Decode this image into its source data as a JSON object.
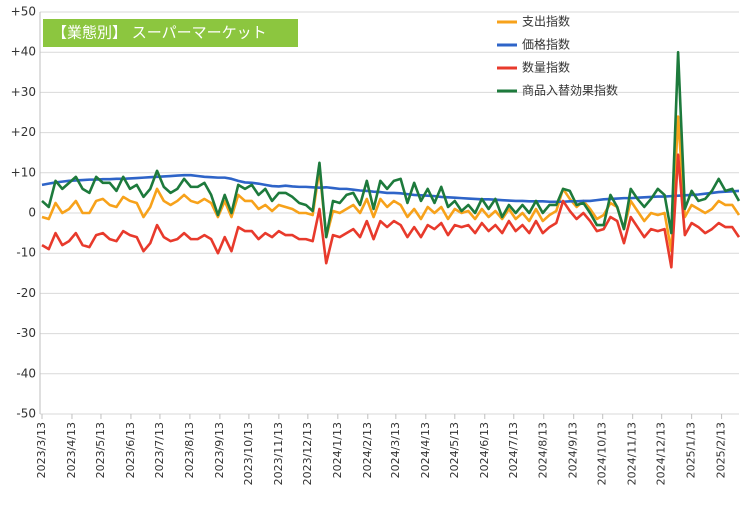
{
  "chart_data": {
    "type": "line",
    "title": "【業態別】 スーパーマーケット",
    "x": [
      "2023/3/13",
      "2023/3/20",
      "2023/3/27",
      "2023/4/3",
      "2023/4/10",
      "2023/4/17",
      "2023/4/24",
      "2023/5/1",
      "2023/5/8",
      "2023/5/15",
      "2023/5/22",
      "2023/5/29",
      "2023/6/5",
      "2023/6/12",
      "2023/6/19",
      "2023/6/26",
      "2023/7/3",
      "2023/7/10",
      "2023/7/17",
      "2023/7/24",
      "2023/7/31",
      "2023/8/7",
      "2023/8/14",
      "2023/8/21",
      "2023/8/28",
      "2023/9/4",
      "2023/9/11",
      "2023/9/18",
      "2023/9/25",
      "2023/10/2",
      "2023/10/9",
      "2023/10/16",
      "2023/10/23",
      "2023/10/30",
      "2023/11/6",
      "2023/11/13",
      "2023/11/20",
      "2023/11/27",
      "2023/12/4",
      "2023/12/11",
      "2023/12/18",
      "2023/12/25",
      "2024/1/1",
      "2024/1/8",
      "2024/1/15",
      "2024/1/22",
      "2024/1/29",
      "2024/2/5",
      "2024/2/12",
      "2024/2/19",
      "2024/2/26",
      "2024/3/4",
      "2024/3/11",
      "2024/3/18",
      "2024/3/25",
      "2024/4/1",
      "2024/4/8",
      "2024/4/15",
      "2024/4/22",
      "2024/4/29",
      "2024/5/6",
      "2024/5/13",
      "2024/5/20",
      "2024/5/27",
      "2024/6/3",
      "2024/6/10",
      "2024/6/17",
      "2024/6/24",
      "2024/7/1",
      "2024/7/8",
      "2024/7/15",
      "2024/7/22",
      "2024/7/29",
      "2024/8/5",
      "2024/8/12",
      "2024/8/19",
      "2024/8/26",
      "2024/9/2",
      "2024/9/9",
      "2024/9/16",
      "2024/9/23",
      "2024/9/30",
      "2024/10/7",
      "2024/10/14",
      "2024/10/21",
      "2024/10/28",
      "2024/11/4",
      "2024/11/11",
      "2024/11/18",
      "2024/11/25",
      "2024/12/2",
      "2024/12/9",
      "2024/12/16",
      "2024/12/23",
      "2024/12/30",
      "2025/1/6",
      "2025/1/13",
      "2025/1/20",
      "2025/1/27",
      "2025/2/3",
      "2025/2/10",
      "2025/2/17",
      "2025/2/24",
      "2025/3/3"
    ],
    "series": [
      {
        "name": "支出指数",
        "color": "#f7a21b",
        "values": [
          -1,
          -1.5,
          2.5,
          0,
          1,
          3,
          0,
          0,
          3,
          3.5,
          2,
          1.5,
          4,
          3,
          2.5,
          -1,
          1.5,
          6,
          3,
          2,
          3,
          4.5,
          3,
          2.5,
          3.5,
          2.5,
          -1,
          3,
          -1,
          4.5,
          3,
          3,
          1,
          2,
          0.5,
          2,
          1.5,
          1,
          0,
          0,
          -0.5,
          11,
          -6,
          0.5,
          0,
          1,
          2,
          0,
          3.5,
          -1,
          3.5,
          1.5,
          3,
          2,
          -1,
          1,
          -1.5,
          1.5,
          0,
          1.5,
          -1.5,
          1,
          0,
          0.5,
          -1.5,
          1,
          -1,
          0.5,
          -1.5,
          1,
          -1.5,
          0,
          -2,
          1,
          -2,
          -0.5,
          0.5,
          6,
          3.5,
          1.5,
          3,
          1,
          -1.5,
          -0.5,
          2.5,
          1.5,
          -4,
          3,
          0.5,
          -2,
          0,
          -0.5,
          0,
          -9.5,
          24,
          -1,
          2,
          1,
          0,
          1,
          3,
          2,
          2,
          -0.5
        ]
      },
      {
        "name": "価格指数",
        "color": "#2e64c8",
        "values": [
          7,
          7.3,
          7.6,
          7.8,
          8,
          8.1,
          8.2,
          8.3,
          8.3,
          8.4,
          8.4,
          8.5,
          8.5,
          8.6,
          8.7,
          8.8,
          8.9,
          9,
          9.1,
          9.2,
          9.3,
          9.4,
          9.4,
          9.2,
          9,
          8.9,
          8.8,
          8.8,
          8.5,
          8,
          7.6,
          7.5,
          7.3,
          7,
          6.7,
          6.6,
          6.8,
          6.6,
          6.5,
          6.5,
          6.4,
          6.3,
          6.4,
          6.2,
          6,
          6,
          5.8,
          5.6,
          5.5,
          5.3,
          5.2,
          5,
          5,
          4.9,
          4.7,
          4.5,
          4.4,
          4.3,
          4.2,
          4,
          3.9,
          3.8,
          3.7,
          3.6,
          3.5,
          3.4,
          3.4,
          3.3,
          3.2,
          3.1,
          3,
          3,
          2.9,
          2.9,
          2.9,
          2.8,
          2.8,
          2.8,
          2.9,
          2.9,
          3,
          3,
          3.2,
          3.4,
          3.5,
          3.6,
          3.7,
          3.7,
          3.8,
          3.9,
          4,
          4.1,
          4.1,
          4.2,
          4.3,
          4.4,
          4.5,
          4.6,
          4.8,
          5,
          5.2,
          5.3,
          5.4,
          5.5
        ]
      },
      {
        "name": "数量指数",
        "color": "#e83a2c",
        "values": [
          -8,
          -9,
          -5,
          -8,
          -7,
          -5,
          -8,
          -8.5,
          -5.5,
          -5,
          -6.5,
          -7,
          -4.5,
          -5.5,
          -6,
          -9.5,
          -7.5,
          -3,
          -6,
          -7,
          -6.5,
          -5,
          -6.5,
          -6.5,
          -5.5,
          -6.5,
          -10,
          -6,
          -9.5,
          -3.5,
          -4.5,
          -4.5,
          -6.5,
          -5,
          -6,
          -4.5,
          -5.5,
          -5.5,
          -6.5,
          -6.5,
          -7,
          1,
          -12.5,
          -5.5,
          -6,
          -5,
          -4,
          -6,
          -2,
          -6.5,
          -2,
          -3.5,
          -2,
          -3,
          -6,
          -3.5,
          -6,
          -3,
          -4,
          -2.5,
          -5.5,
          -3,
          -3.5,
          -3,
          -5,
          -2.5,
          -4.5,
          -3,
          -5,
          -2,
          -4.5,
          -3,
          -5,
          -2,
          -5,
          -3.5,
          -2.5,
          3,
          0.5,
          -1.5,
          0,
          -2,
          -4.5,
          -4,
          -1,
          -2,
          -7.5,
          -1,
          -3.5,
          -6,
          -4,
          -4.5,
          -4,
          -13.5,
          14.5,
          -5.5,
          -2.5,
          -3.5,
          -5,
          -4,
          -2.5,
          -3.5,
          -3.5,
          -6
        ]
      },
      {
        "name": "商品入替効果指数",
        "color": "#1d7a3c",
        "values": [
          3,
          1.5,
          8,
          6,
          7.5,
          9,
          6,
          5,
          9,
          7.5,
          7.5,
          5.5,
          9,
          6,
          7,
          4,
          6,
          10.5,
          6.5,
          5,
          6,
          8.5,
          6.5,
          6.5,
          7.5,
          4.5,
          -0.5,
          4.5,
          0,
          7,
          6,
          7,
          4.5,
          6,
          3,
          5,
          5,
          4,
          2.5,
          2,
          0.5,
          12.5,
          -6,
          3,
          2.5,
          4.5,
          5,
          2,
          8,
          1,
          8,
          6,
          8,
          8.5,
          2.5,
          7.5,
          3,
          6,
          2.5,
          6.5,
          1.5,
          3,
          0.5,
          2,
          0,
          3.5,
          1,
          3.5,
          -1,
          2,
          0,
          2,
          0,
          3,
          0,
          2,
          2,
          6,
          5.5,
          2,
          2.5,
          0,
          -3,
          -3,
          4.5,
          1.5,
          -4,
          6,
          3.5,
          1.5,
          3.5,
          6,
          4.5,
          -5,
          40,
          1,
          5.5,
          3,
          3.5,
          5.5,
          8.5,
          5.5,
          6,
          3
        ]
      }
    ],
    "xlim": [
      "2023/3/13",
      "2025/3/3"
    ],
    "xticks": [
      "2023/3/13",
      "2023/4/13",
      "2023/5/13",
      "2023/6/13",
      "2023/7/13",
      "2023/8/13",
      "2023/9/13",
      "2023/10/13",
      "2023/11/13",
      "2023/12/13",
      "2024/1/13",
      "2024/2/13",
      "2024/3/13",
      "2024/4/13",
      "2024/5/13",
      "2024/6/13",
      "2024/7/13",
      "2024/8/13",
      "2024/9/13",
      "2024/10/13",
      "2024/11/13",
      "2024/12/13",
      "2025/1/13",
      "2025/2/13"
    ],
    "ylim": [
      -50,
      50
    ],
    "yticks": [
      {
        "value": 50,
        "label": "+50"
      },
      {
        "value": 40,
        "label": "+40"
      },
      {
        "value": 30,
        "label": "+30"
      },
      {
        "value": 20,
        "label": "+20"
      },
      {
        "value": 10,
        "label": "+10"
      },
      0,
      -10,
      -20,
      -30,
      -40,
      -50
    ],
    "grid": true,
    "legend": "upper right",
    "title_color": "#8cc63f"
  }
}
